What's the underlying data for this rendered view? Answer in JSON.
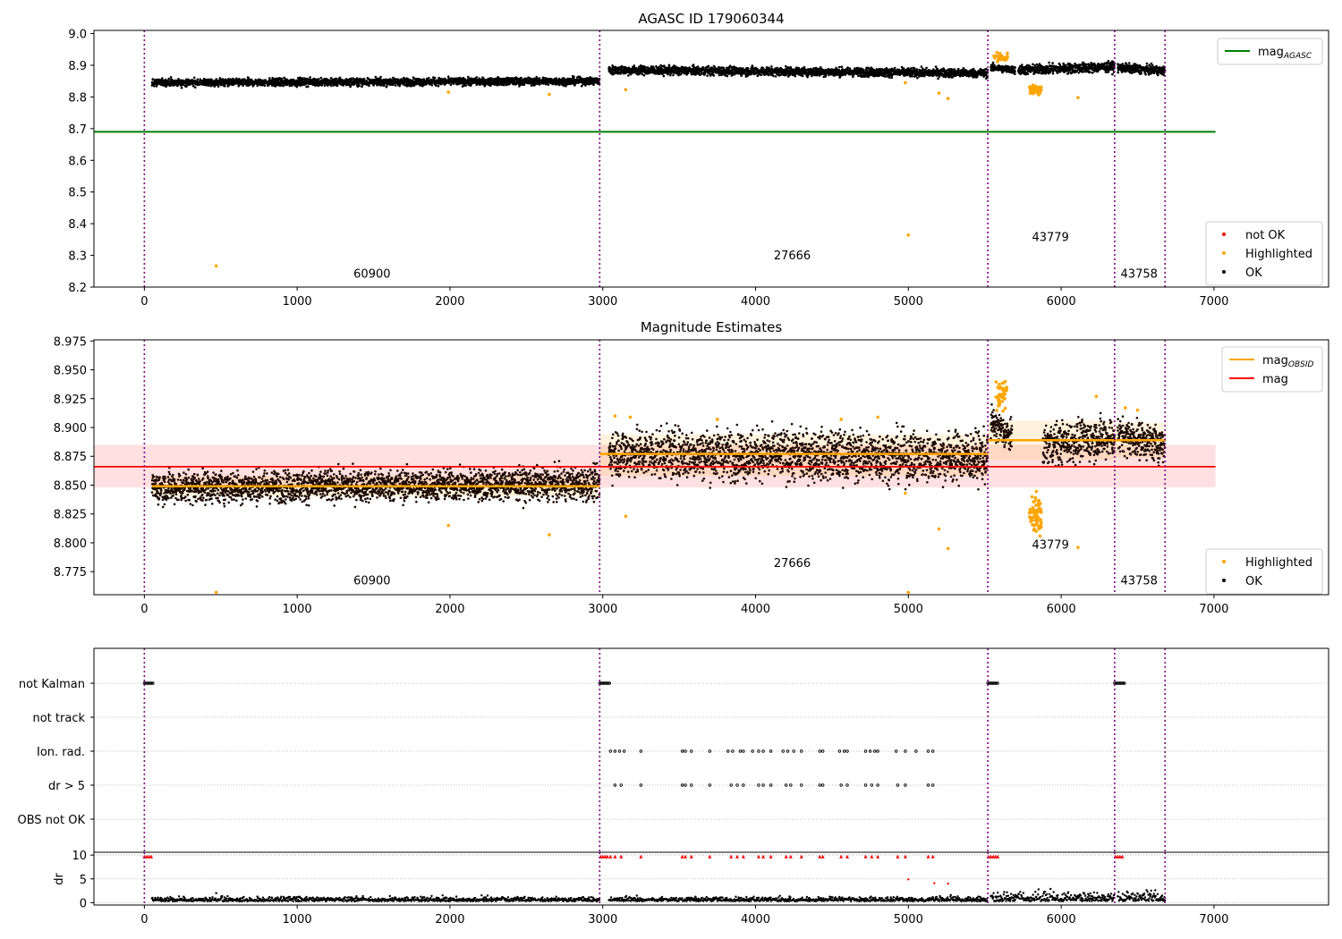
{
  "chart_data": [
    {
      "type": "scatter",
      "title": "AGASC ID 179060344",
      "xlim": [
        -330,
        7750
      ],
      "ylim": [
        8.2,
        9.01
      ],
      "xticks": [
        0,
        1000,
        2000,
        3000,
        4000,
        5000,
        6000,
        7000
      ],
      "yticks": [
        "8.2",
        "8.3",
        "8.4",
        "8.5",
        "8.6",
        "8.7",
        "8.8",
        "8.9",
        "9.0"
      ],
      "obsid_boundaries": [
        0,
        2980,
        5520,
        6350,
        6680
      ],
      "obsids": [
        {
          "label": "60900",
          "x": 1490,
          "y": 8.23
        },
        {
          "label": "27666",
          "x": 4240,
          "y": 8.288
        },
        {
          "label": "43779",
          "x": 5930,
          "y": 8.346
        },
        {
          "label": "43758",
          "x": 6510,
          "y": 8.23
        }
      ],
      "mag_agasc": 8.69,
      "mag_agasc_xrange": [
        -330,
        7010
      ],
      "segments": [
        {
          "x0": 50,
          "x1": 2980,
          "y0": 8.845,
          "y1": 8.85,
          "noise": 0.006
        },
        {
          "x0": 3040,
          "x1": 5520,
          "y0": 8.885,
          "y1": 8.875,
          "noise": 0.007
        },
        {
          "x0": 5540,
          "x1": 5700,
          "y0": 8.893,
          "y1": 8.885,
          "noise": 0.006
        },
        {
          "x0": 5720,
          "x1": 6350,
          "y0": 8.885,
          "y1": 8.895,
          "noise": 0.008
        },
        {
          "x0": 6370,
          "x1": 6680,
          "y0": 8.893,
          "y1": 8.882,
          "noise": 0.007
        }
      ],
      "highlighted_points": [
        [
          470,
          8.267
        ],
        [
          5000,
          8.364
        ],
        [
          5200,
          8.812
        ],
        [
          5260,
          8.795
        ],
        [
          3150,
          8.823
        ],
        [
          2650,
          8.808
        ],
        [
          6110,
          8.798
        ],
        [
          1990,
          8.815
        ],
        [
          4980,
          8.845
        ],
        [
          5580,
          8.94
        ],
        [
          5610,
          8.93
        ],
        [
          5640,
          8.925
        ]
      ],
      "legend_top": [
        {
          "label": "mag",
          "sub": "AGASC",
          "color": "#008000"
        }
      ],
      "legend_bottom": [
        {
          "label": "not OK",
          "color": "#ff0000"
        },
        {
          "label": "Highlighted",
          "color": "#ffa500"
        },
        {
          "label": "OK",
          "color": "#000000"
        }
      ]
    },
    {
      "type": "scatter",
      "title": "Magnitude Estimates",
      "xlim": [
        -330,
        7750
      ],
      "ylim": [
        8.755,
        8.976
      ],
      "xticks": [
        0,
        1000,
        2000,
        3000,
        4000,
        5000,
        6000,
        7000
      ],
      "yticks": [
        "8.775",
        "8.800",
        "8.825",
        "8.850",
        "8.875",
        "8.900",
        "8.925",
        "8.950",
        "8.975"
      ],
      "obsid_boundaries": [
        0,
        2980,
        5520,
        6350,
        6680
      ],
      "obsids": [
        {
          "label": "60900",
          "x": 1490,
          "y": 8.764
        },
        {
          "label": "27666",
          "x": 4240,
          "y": 8.779
        },
        {
          "label": "43779",
          "x": 5930,
          "y": 8.795
        },
        {
          "label": "43758",
          "x": 6510,
          "y": 8.764
        }
      ],
      "mag": 8.866,
      "mag_band": [
        8.848,
        8.885
      ],
      "mag_xrange": [
        -330,
        7010
      ],
      "mag_obsid": [
        {
          "x0": 50,
          "x1": 2980,
          "y": 8.849,
          "band": [
            8.84,
            8.858
          ]
        },
        {
          "x0": 2980,
          "x1": 5520,
          "y": 8.877,
          "band": [
            8.858,
            8.894
          ]
        },
        {
          "x0": 5520,
          "x1": 6350,
          "y": 8.889,
          "band": [
            8.872,
            8.906
          ]
        },
        {
          "x0": 6350,
          "x1": 6680,
          "y": 8.889,
          "band": [
            8.874,
            8.904
          ]
        }
      ],
      "segments": [
        {
          "x0": 50,
          "x1": 2980,
          "y0": 8.848,
          "y1": 8.851,
          "noise": 0.007
        },
        {
          "x0": 3040,
          "x1": 5520,
          "y0": 8.878,
          "y1": 8.874,
          "noise": 0.011
        },
        {
          "x0": 5540,
          "x1": 5680,
          "y0": 8.905,
          "y1": 8.89,
          "noise": 0.007
        },
        {
          "x0": 5880,
          "x1": 6350,
          "y0": 8.885,
          "y1": 8.892,
          "noise": 0.009
        },
        {
          "x0": 6370,
          "x1": 6680,
          "y0": 8.893,
          "y1": 8.885,
          "noise": 0.008
        }
      ],
      "highlighted_points": [
        [
          470,
          8.757
        ],
        [
          5000,
          8.757
        ],
        [
          1990,
          8.815
        ],
        [
          2650,
          8.807
        ],
        [
          3150,
          8.823
        ],
        [
          5200,
          8.812
        ],
        [
          5260,
          8.795
        ],
        [
          6110,
          8.796
        ],
        [
          4980,
          8.843
        ],
        [
          3080,
          8.91
        ],
        [
          3180,
          8.909
        ],
        [
          3750,
          8.907
        ],
        [
          4560,
          8.907
        ],
        [
          4800,
          8.909
        ],
        [
          6230,
          8.927
        ],
        [
          6420,
          8.917
        ],
        [
          6500,
          8.915
        ]
      ],
      "legend_top": [
        {
          "label": "mag",
          "sub": "OBSID",
          "color": "#ffa500"
        },
        {
          "label": "mag",
          "sub": "",
          "color": "#ff0000"
        }
      ],
      "legend_bottom": [
        {
          "label": "Highlighted",
          "color": "#ffa500"
        },
        {
          "label": "OK",
          "color": "#000000"
        }
      ]
    },
    {
      "type": "scatter",
      "xlim": [
        -330,
        7750
      ],
      "flag_labels": [
        "not Kalman",
        "not track",
        "Ion. rad.",
        "dr > 5",
        "OBS not OK"
      ],
      "obsid_boundaries": [
        0,
        2980,
        5520,
        6350,
        6680
      ],
      "not_kalman_ranges": [
        [
          0,
          60
        ],
        [
          2980,
          3050
        ],
        [
          5520,
          5590
        ],
        [
          6350,
          6420
        ]
      ],
      "ion_rad_x": [
        3050,
        3080,
        3110,
        3140,
        3250,
        3520,
        3540,
        3580,
        3700,
        3820,
        3850,
        3900,
        3920,
        3980,
        4020,
        4050,
        4100,
        4180,
        4210,
        4250,
        4300,
        4420,
        4440,
        4550,
        4580,
        4600,
        4720,
        4750,
        4780,
        4800,
        4920,
        4980,
        5050,
        5130,
        5160
      ],
      "dr5_x": [
        3080,
        3120,
        3250,
        3520,
        3540,
        3580,
        3700,
        3840,
        3880,
        3920,
        4020,
        4050,
        4100,
        4200,
        4230,
        4300,
        4420,
        4440,
        4560,
        4600,
        4720,
        4760,
        4800,
        4930,
        4980,
        5130,
        5160
      ]
    },
    {
      "type": "scatter",
      "ylabel": "dr",
      "xlim": [
        -330,
        7750
      ],
      "ylim": [
        -0.5,
        10.6
      ],
      "xticks": [
        0,
        1000,
        2000,
        3000,
        4000,
        5000,
        6000,
        7000
      ],
      "yticks": [
        "0",
        "5",
        "10"
      ],
      "obsid_boundaries": [
        0,
        2980,
        5520,
        6350,
        6680
      ],
      "dr_outlier_points": [
        [
          5000,
          4.9
        ],
        [
          5170,
          4.1
        ],
        [
          5260,
          4.0
        ],
        [
          470,
          2.0
        ]
      ]
    }
  ]
}
